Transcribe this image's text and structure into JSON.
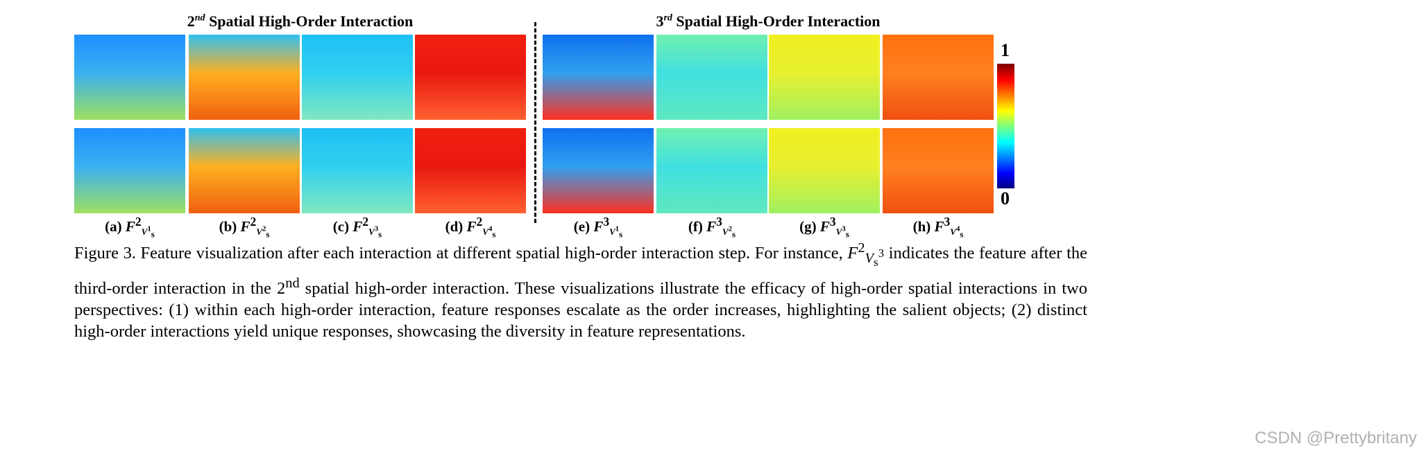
{
  "headers": [
    {
      "base": "2",
      "sup": "nd",
      "text": " Spatial High-Order Interaction"
    },
    {
      "base": "3",
      "sup": "rd",
      "text": " Spatial High-Order Interaction"
    }
  ],
  "panels": [
    {
      "label": "(a)",
      "sym": "F",
      "sup": "2",
      "sub": "1",
      "colors": [
        "#1e90ff",
        "#3ab0f0",
        "#9fe060"
      ]
    },
    {
      "label": "(b)",
      "sym": "F",
      "sup": "2",
      "sub": "2",
      "colors": [
        "#30c0f0",
        "#ffb020",
        "#f06010"
      ]
    },
    {
      "label": "(c)",
      "sym": "F",
      "sup": "2",
      "sub": "3",
      "colors": [
        "#1ec0f5",
        "#30d0f0",
        "#80e8c0"
      ]
    },
    {
      "label": "(d)",
      "sym": "F",
      "sup": "2",
      "sub": "4",
      "colors": [
        "#f02010",
        "#e81810",
        "#ff6030"
      ]
    },
    {
      "label": "(e)",
      "sym": "F",
      "sup": "3",
      "sub": "1",
      "colors": [
        "#1070f0",
        "#30a0f0",
        "#ff3020"
      ]
    },
    {
      "label": "(f)",
      "sym": "F",
      "sup": "3",
      "sub": "2",
      "colors": [
        "#70f0b0",
        "#40e0e0",
        "#60e8c0"
      ]
    },
    {
      "label": "(g)",
      "sym": "F",
      "sup": "3",
      "sub": "3",
      "colors": [
        "#f0f020",
        "#e8f030",
        "#a0f060"
      ]
    },
    {
      "label": "(h)",
      "sym": "F",
      "sup": "3",
      "sub": "4",
      "colors": [
        "#ff7010",
        "#ff8020",
        "#f05010"
      ]
    }
  ],
  "colorbar": {
    "max": "1",
    "min": "0",
    "colormap": "jet"
  },
  "caption": {
    "p1": "Figure 3. Feature visualization after each interaction at different spatial high-order interaction step. For instance, ",
    "sym": "F",
    "p2": " indicates the feature after the third-order interaction in the 2",
    "sup": "nd",
    "p3": " spatial high-order interaction. These visualizations illustrate the efficacy of high-order spatial interactions in two perspectives: (1) within each high-order interaction, feature responses escalate as the order increases, highlighting the salient objects; (2) distinct high-order interactions yield unique responses, showcasing the diversity in feature representations."
  },
  "watermark": "CSDN @Prettybritany"
}
